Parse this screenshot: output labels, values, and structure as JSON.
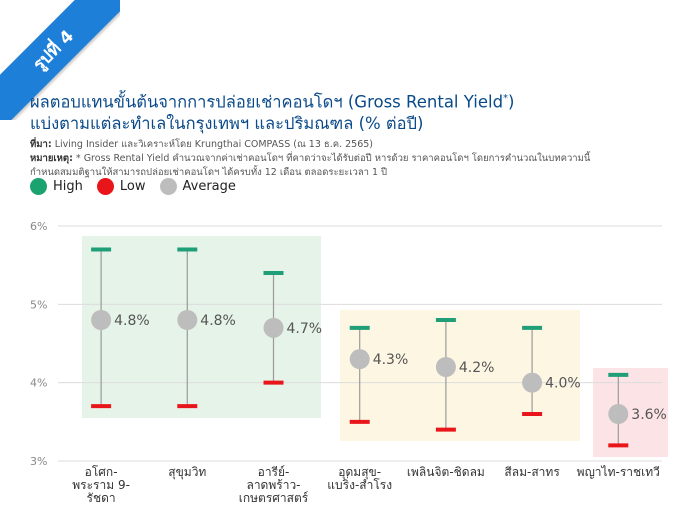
{
  "badge": "รูปที่ 4",
  "title_line1": "ผลตอบแทนขั้นต้นจากการปล่อยเช่าคอนโดฯ (Gross Rental Yield",
  "title_sup": "*",
  "title_line1_end": ")",
  "title_line2": "แบ่งตามแต่ละทำเลในกรุงเทพฯ และปริมณฑล (% ต่อปี)",
  "source_label": "ที่มา:",
  "source_text": " Living Insider และวิเคราะห์โดย Krungthai COMPASS (ณ 13 ธ.ค. 2565)",
  "note_label": "หมายเหตุ:",
  "note_text": " * Gross Rental Yield คำนวณจากค่าเช่าคอนโดฯ ที่คาดว่าจะได้รับต่อปี หารด้วย ราคาคอนโดฯ โดยการคำนวณในบทความนี้",
  "note_text2": "กำหนดสมมติฐานให้สามารถปล่อยเช่าคอนโดฯ ได้ครบทั้ง 12 เดือน ตลอดระยะเวลา 1 ปี",
  "legend": [
    {
      "label": "High",
      "color": "#1aa36f"
    },
    {
      "label": "Low",
      "color": "#e8161b"
    },
    {
      "label": "Average",
      "color": "#bdbdbd"
    }
  ],
  "colors": {
    "high": "#1f9e77",
    "low": "#e8161b",
    "avg": "#bdbdbd",
    "grid": "#dcdcdc",
    "green_zone": "#e5f3e8",
    "yellow_zone": "#fdf6e3",
    "pink_zone": "#fbe3e6"
  },
  "chart_data": {
    "type": "range",
    "yaxis_ticks": [
      "6%",
      "5%",
      "4%",
      "3%"
    ],
    "ylim": [
      3,
      6
    ],
    "categories": [
      [
        "อโศก-",
        "พระราม 9-",
        "รัชดา"
      ],
      [
        "สุขุมวิท"
      ],
      [
        "อารีย์-",
        "ลาดพร้าว-",
        "เกษตรศาสตร์"
      ],
      [
        "อุดมสุข-",
        "แบริ่ง-สำโรง"
      ],
      [
        "เพลินจิต-ชิดลม"
      ],
      [
        "สีลม-สาทร"
      ],
      [
        "พญาไท-ราชเทวี"
      ]
    ],
    "high": [
      5.7,
      5.7,
      5.4,
      4.7,
      4.8,
      4.7,
      4.1
    ],
    "low": [
      3.7,
      3.7,
      4.0,
      3.5,
      3.4,
      3.6,
      3.2
    ],
    "average": [
      4.8,
      4.8,
      4.7,
      4.3,
      4.2,
      4.0,
      3.6
    ],
    "avg_labels": [
      "4.8%",
      "4.8%",
      "4.7%",
      "4.3%",
      "4.2%",
      "4.0%",
      "3.6%"
    ],
    "zones": [
      {
        "from": 0,
        "to": 2,
        "color": "green_zone"
      },
      {
        "from": 3,
        "to": 5,
        "color": "yellow_zone"
      },
      {
        "from": 6,
        "to": 6,
        "color": "pink_zone"
      }
    ],
    "grid": true
  }
}
